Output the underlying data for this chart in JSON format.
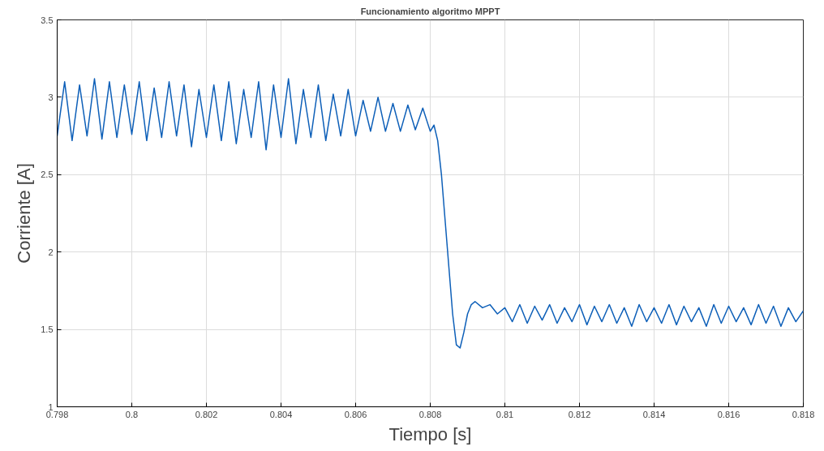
{
  "chart_data": {
    "type": "line",
    "title": "Funcionamiento algoritmo MPPT",
    "xlabel": "Tiempo [s]",
    "ylabel": "Corriente [A]",
    "xlim": [
      0.798,
      0.818
    ],
    "ylim": [
      1,
      3.5
    ],
    "xticks": [
      0.798,
      0.8,
      0.802,
      0.804,
      0.806,
      0.808,
      0.81,
      0.812,
      0.814,
      0.816,
      0.818
    ],
    "yticks": [
      1,
      1.5,
      2,
      2.5,
      3,
      3.5
    ],
    "grid": true,
    "marker": "none",
    "line_style": "solid",
    "series": [
      {
        "color": "#0d5fb8",
        "x": [
          0.798,
          0.7982,
          0.7984,
          0.7986,
          0.7988,
          0.799,
          0.7992,
          0.7994,
          0.7996,
          0.7998,
          0.8,
          0.8002,
          0.8004,
          0.8006,
          0.8008,
          0.801,
          0.8012,
          0.8014,
          0.8016,
          0.8018,
          0.802,
          0.8022,
          0.8024,
          0.8026,
          0.8028,
          0.803,
          0.8032,
          0.8034,
          0.8036,
          0.8038,
          0.804,
          0.8042,
          0.8044,
          0.8046,
          0.8048,
          0.805,
          0.8052,
          0.8054,
          0.8056,
          0.8058,
          0.806,
          0.8062,
          0.8064,
          0.8066,
          0.8068,
          0.807,
          0.8072,
          0.8074,
          0.8076,
          0.8078,
          0.808,
          0.8081,
          0.8082,
          0.8083,
          0.8084,
          0.8085,
          0.8086,
          0.8087,
          0.8088,
          0.8089,
          0.809,
          0.8091,
          0.8092,
          0.8094,
          0.8096,
          0.8098,
          0.81,
          0.8102,
          0.8104,
          0.8106,
          0.8108,
          0.811,
          0.8112,
          0.8114,
          0.8116,
          0.8118,
          0.812,
          0.8122,
          0.8124,
          0.8126,
          0.8128,
          0.813,
          0.8132,
          0.8134,
          0.8136,
          0.8138,
          0.814,
          0.8142,
          0.8144,
          0.8146,
          0.8148,
          0.815,
          0.8152,
          0.8154,
          0.8156,
          0.8158,
          0.816,
          0.8162,
          0.8164,
          0.8166,
          0.8168,
          0.817,
          0.8172,
          0.8174,
          0.8176,
          0.8178,
          0.818
        ],
        "values": [
          2.75,
          3.1,
          2.72,
          3.08,
          2.75,
          3.12,
          2.73,
          3.1,
          2.74,
          3.08,
          2.76,
          3.1,
          2.72,
          3.06,
          2.74,
          3.1,
          2.75,
          3.08,
          2.68,
          3.05,
          2.74,
          3.08,
          2.72,
          3.1,
          2.7,
          3.05,
          2.74,
          3.1,
          2.66,
          3.08,
          2.74,
          3.12,
          2.7,
          3.05,
          2.74,
          3.08,
          2.72,
          3.02,
          2.75,
          3.05,
          2.75,
          2.98,
          2.78,
          3.0,
          2.78,
          2.96,
          2.78,
          2.95,
          2.79,
          2.93,
          2.78,
          2.82,
          2.72,
          2.5,
          2.2,
          1.9,
          1.6,
          1.4,
          1.38,
          1.48,
          1.6,
          1.66,
          1.68,
          1.64,
          1.66,
          1.6,
          1.64,
          1.55,
          1.66,
          1.54,
          1.65,
          1.56,
          1.66,
          1.54,
          1.64,
          1.55,
          1.66,
          1.53,
          1.65,
          1.55,
          1.66,
          1.54,
          1.64,
          1.52,
          1.66,
          1.55,
          1.64,
          1.54,
          1.66,
          1.53,
          1.65,
          1.55,
          1.64,
          1.52,
          1.66,
          1.54,
          1.65,
          1.55,
          1.64,
          1.53,
          1.66,
          1.54,
          1.65,
          1.52,
          1.64,
          1.55,
          1.62
        ]
      }
    ]
  }
}
